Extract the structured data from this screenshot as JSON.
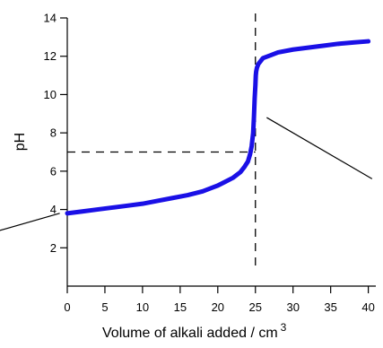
{
  "chart_data": {
    "type": "line",
    "title": "",
    "xlabel": "Volume of alkali added / cm",
    "xlabel_superscript": "3",
    "ylabel": "pH",
    "xlim": [
      0,
      41
    ],
    "ylim": [
      0,
      14
    ],
    "xticks": [
      0,
      5,
      10,
      15,
      20,
      25,
      30,
      35,
      40
    ],
    "yticks": [
      2,
      4,
      6,
      8,
      10,
      12,
      14
    ],
    "grid": false,
    "legend": "none",
    "colors": {
      "curve": "#1a10e6",
      "axes": "#000000",
      "guides": "#000000"
    },
    "series": [
      {
        "x": [
          0,
          2,
          4,
          6,
          8,
          10,
          12,
          14,
          16,
          17,
          18,
          19,
          20,
          21,
          22,
          22.5,
          23,
          23.5,
          24,
          24.3,
          24.5,
          24.7,
          24.8,
          24.9,
          25,
          25.05,
          25.1,
          25.2,
          25.4,
          25.7,
          26,
          27,
          28,
          30,
          32,
          34,
          36,
          38,
          40
        ],
        "y": [
          3.8,
          3.9,
          4.0,
          4.1,
          4.2,
          4.3,
          4.45,
          4.6,
          4.75,
          4.85,
          4.95,
          5.1,
          5.25,
          5.45,
          5.65,
          5.8,
          5.95,
          6.2,
          6.5,
          6.9,
          7.3,
          8.0,
          8.8,
          9.8,
          10.5,
          11.0,
          11.2,
          11.4,
          11.6,
          11.75,
          11.9,
          12.05,
          12.2,
          12.35,
          12.45,
          12.55,
          12.65,
          12.72,
          12.78
        ]
      }
    ],
    "reference_lines": {
      "vertical_x": 25,
      "horizontal_y": 7
    },
    "annotation_pointers": [
      {
        "from": [
          -9,
          2.9
        ],
        "to": [
          -1,
          3.8
        ]
      },
      {
        "from": [
          26.5,
          8.8
        ],
        "to": [
          40.5,
          5.6
        ]
      }
    ]
  }
}
